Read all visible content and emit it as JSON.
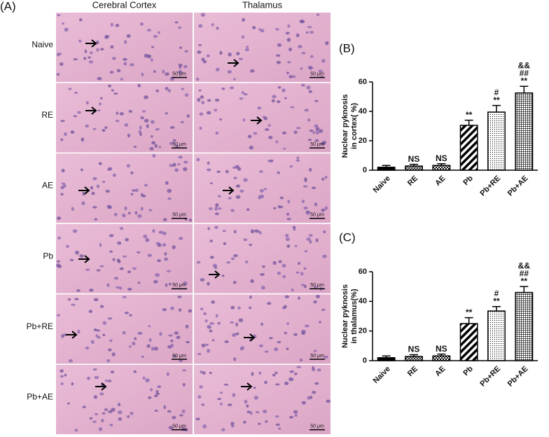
{
  "figure": {
    "label": "(A)",
    "columns": [
      "Cerebral Cortex",
      "Thalamus"
    ],
    "rows": [
      "Naive",
      "RE",
      "AE",
      "Pb",
      "Pb+RE",
      "Pb+AE"
    ],
    "scale_bar": "50 μm"
  },
  "chart_data": [
    {
      "type": "bar",
      "label": "(B)",
      "ylabel": [
        "Nuclear pyknosis",
        "in cortex( %)"
      ],
      "categories": [
        "Naive",
        "RE",
        "AE",
        "Pb",
        "Pb+RE",
        "Pb+AE"
      ],
      "values": [
        2,
        2.8,
        3.2,
        30.5,
        39.5,
        52.5
      ],
      "errors": [
        1.2,
        1.2,
        1.2,
        3.5,
        4.5,
        4.5
      ],
      "annotations": [
        null,
        [
          "NS"
        ],
        [
          "NS"
        ],
        [
          "**"
        ],
        [
          "#",
          "**"
        ],
        [
          "&&",
          "##",
          "**"
        ]
      ],
      "patterns": [
        "solid",
        "crosshatch",
        "checker",
        "diagonal",
        "dots",
        "grid"
      ],
      "color": "#000000",
      "ylim": [
        0,
        60
      ],
      "yticks": [
        0,
        20,
        40,
        60
      ]
    },
    {
      "type": "bar",
      "label": "(C)",
      "ylabel": [
        "Nuclear pyknosis",
        "in thalamus(%)"
      ],
      "categories": [
        "Naive",
        "RE",
        "AE",
        "Pb",
        "Pb+RE",
        "Pb+AE"
      ],
      "values": [
        2,
        2.8,
        3.2,
        25,
        33.5,
        46
      ],
      "errors": [
        1.2,
        1.2,
        1.2,
        4,
        3,
        4
      ],
      "annotations": [
        null,
        [
          "NS"
        ],
        [
          "NS"
        ],
        [
          "**"
        ],
        [
          "#",
          "**"
        ],
        [
          "&&",
          "##",
          "**"
        ]
      ],
      "patterns": [
        "solid",
        "crosshatch",
        "checker",
        "diagonal",
        "dots",
        "grid"
      ],
      "color": "#000000",
      "ylim": [
        0,
        60
      ],
      "yticks": [
        0,
        20,
        40,
        60
      ]
    }
  ]
}
